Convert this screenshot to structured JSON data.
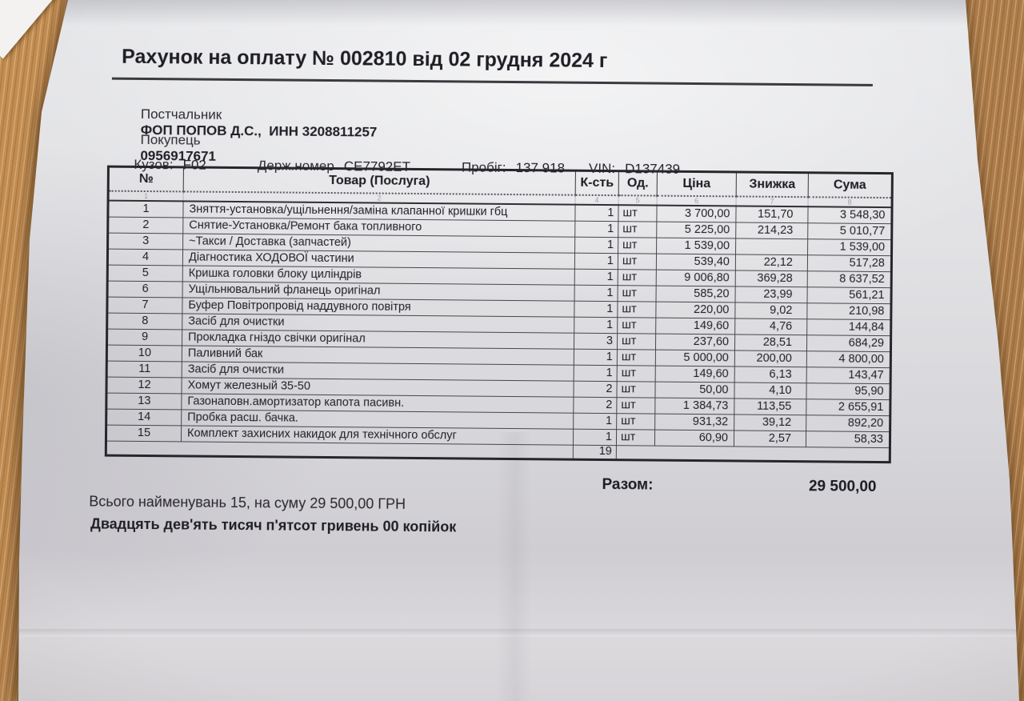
{
  "doc": {
    "title": "Рахунок на оплату № 002810 від 02 грудня 2024 г",
    "supplier": {
      "label": "Постчальник",
      "value": "ФОП ПОПОВ Д.С.,  ИНН 3208811257"
    },
    "buyer": {
      "label": "Покупець",
      "value": "0956917671"
    },
    "vehicle": [
      {
        "label": "Кузов:",
        "value": "F02"
      },
      {
        "label": "Держ.номер",
        "value": "СЕ7792ЕТ"
      },
      {
        "label": "Пробіг:",
        "value": "137 918"
      },
      {
        "label": "VIN:",
        "value": "D137439"
      }
    ]
  },
  "table": {
    "headers": [
      "№",
      "Товар (Послуга)",
      "К-сть",
      "Од.",
      "Ціна",
      "Знижка",
      "Сума"
    ],
    "column_numbers": [
      "1",
      "2",
      "4",
      "5",
      "6",
      "7",
      "8"
    ],
    "rows": [
      {
        "n": "1",
        "item": "Зняття-установка/ущільнення/заміна клапанної кришки гбц",
        "qty": "1",
        "unit": "шт",
        "price": "3 700,00",
        "discount": "151,70",
        "sum": "3 548,30"
      },
      {
        "n": "2",
        "item": "Снятие-Установка/Ремонт бака топливного",
        "qty": "1",
        "unit": "шт",
        "price": "5 225,00",
        "discount": "214,23",
        "sum": "5 010,77"
      },
      {
        "n": "3",
        "item": "~Такси / Доставка (запчастей)",
        "qty": "1",
        "unit": "шт",
        "price": "1 539,00",
        "discount": "",
        "sum": "1 539,00"
      },
      {
        "n": "4",
        "item": "Діагностика ХОДОВОЇ частини",
        "qty": "1",
        "unit": "шт",
        "price": "539,40",
        "discount": "22,12",
        "sum": "517,28"
      },
      {
        "n": "5",
        "item": "Кришка головки блоку циліндрів",
        "qty": "1",
        "unit": "шт",
        "price": "9 006,80",
        "discount": "369,28",
        "sum": "8 637,52"
      },
      {
        "n": "6",
        "item": "Ущільнювальний фланець оригінал",
        "qty": "1",
        "unit": "шт",
        "price": "585,20",
        "discount": "23,99",
        "sum": "561,21"
      },
      {
        "n": "7",
        "item": "Буфер Повітропровід наддувного повітря",
        "qty": "1",
        "unit": "шт",
        "price": "220,00",
        "discount": "9,02",
        "sum": "210,98"
      },
      {
        "n": "8",
        "item": "Засіб для очистки",
        "qty": "1",
        "unit": "шт",
        "price": "149,60",
        "discount": "4,76",
        "sum": "144,84"
      },
      {
        "n": "9",
        "item": "Прокладка гніздо свічки оригінал",
        "qty": "3",
        "unit": "шт",
        "price": "237,60",
        "discount": "28,51",
        "sum": "684,29"
      },
      {
        "n": "10",
        "item": "Паливний бак",
        "qty": "1",
        "unit": "шт",
        "price": "5 000,00",
        "discount": "200,00",
        "sum": "4 800,00"
      },
      {
        "n": "11",
        "item": "Засіб для очистки",
        "qty": "1",
        "unit": "шт",
        "price": "149,60",
        "discount": "6,13",
        "sum": "143,47"
      },
      {
        "n": "12",
        "item": "Хомут железный 35-50",
        "qty": "2",
        "unit": "шт",
        "price": "50,00",
        "discount": "4,10",
        "sum": "95,90"
      },
      {
        "n": "13",
        "item": "Газонаповн.амортизатор капота пасивн.",
        "qty": "2",
        "unit": "шт",
        "price": "1 384,73",
        "discount": "113,55",
        "sum": "2 655,91"
      },
      {
        "n": "14",
        "item": "Пробка расш. бачка.",
        "qty": "1",
        "unit": "шт",
        "price": "931,32",
        "discount": "39,12",
        "sum": "892,20"
      },
      {
        "n": "15",
        "item": "Комплект захисних накидок для технічного обслуг",
        "qty": "1",
        "unit": "шт",
        "price": "60,90",
        "discount": "2,57",
        "sum": "58,33"
      }
    ],
    "total_qty": "19",
    "total_label": "Разом:",
    "total_value": "29 500,00"
  },
  "footer": {
    "summary": "Всього найменувань 15, на суму 29 500,00 ГРН",
    "amount_in_words": "Двадцять дев'ять тисяч п'ятсот гривень 00 копійок"
  }
}
